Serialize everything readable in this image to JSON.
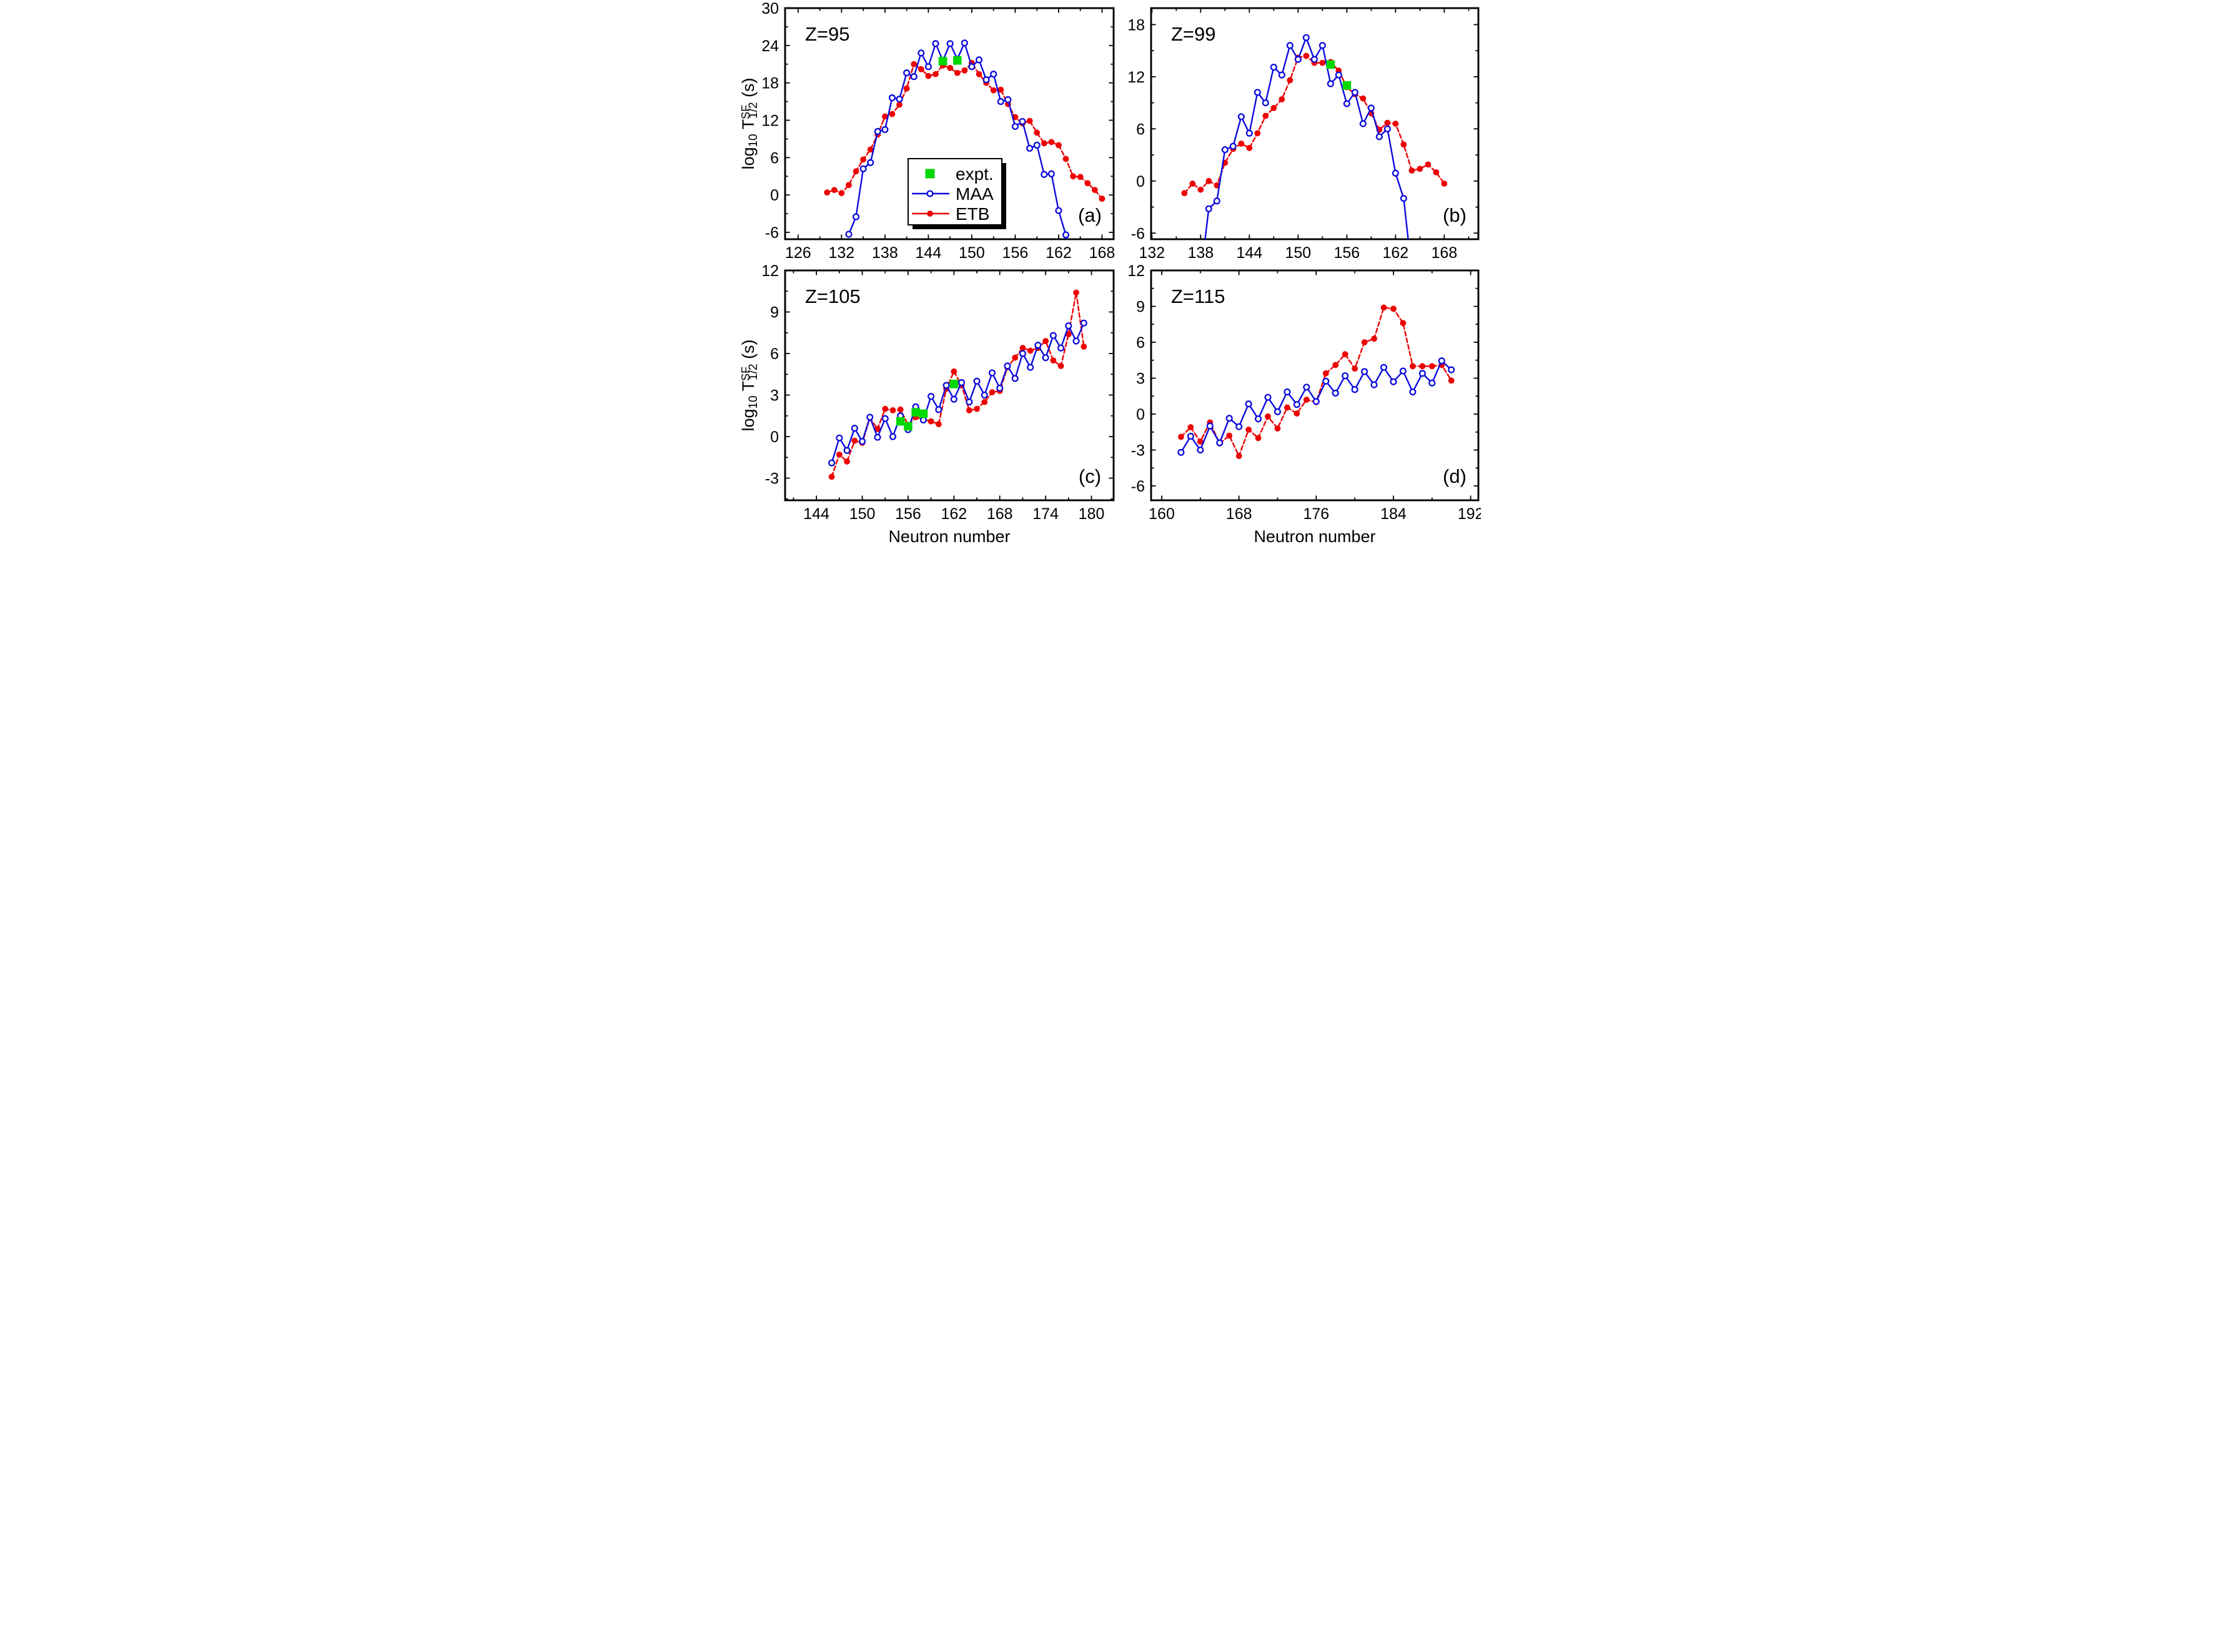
{
  "figure": {
    "xlabel": "Neutron number",
    "ylabel_parts": {
      "prefix": "log",
      "sub1": "10",
      "body": " T",
      "sup": "SF",
      "sub2": "1/2",
      "suffix": " (s)"
    },
    "background": "#ffffff"
  },
  "colors": {
    "maa": "#0b0bdf",
    "etb": "#ee0000",
    "expt": "#00d800",
    "axis": "#000000",
    "legend_shadow": "#000000"
  },
  "legend": {
    "items": [
      {
        "key": "expt",
        "label": "expt.",
        "marker": "square"
      },
      {
        "key": "maa",
        "label": "MAA",
        "marker": "open-circle-line"
      },
      {
        "key": "etb",
        "label": "ETB",
        "marker": "filled-circle-line"
      }
    ]
  },
  "chart_data": [
    {
      "id": "a",
      "type": "line",
      "title": "Z=95",
      "corner_label": "(a)",
      "xlim": [
        124.2,
        169.6
      ],
      "ylim": [
        -7.1,
        30.0
      ],
      "xticks": [
        126,
        132,
        138,
        144,
        150,
        156,
        162,
        168
      ],
      "xminor_step": 3,
      "yticks": [
        30,
        24,
        18,
        12,
        6,
        0,
        -6
      ],
      "yminor_step": 3,
      "series": [
        {
          "name": "ETB",
          "x": [
            130,
            131,
            132,
            133,
            134,
            135,
            136,
            137,
            138,
            139,
            140,
            141,
            142,
            143,
            144,
            145,
            146,
            147,
            148,
            149,
            150,
            151,
            152,
            153,
            154,
            155,
            156,
            157,
            158,
            159,
            160,
            161,
            162,
            163,
            164,
            165,
            166,
            167,
            168
          ],
          "y": [
            0.4,
            0.8,
            0.3,
            1.6,
            3.8,
            5.7,
            7.3,
            9.7,
            12.6,
            13.0,
            14.5,
            17.1,
            21.0,
            20.2,
            19.1,
            19.4,
            20.8,
            20.4,
            19.6,
            20.0,
            21.2,
            19.4,
            18.0,
            16.8,
            16.9,
            14.6,
            12.5,
            11.5,
            11.9,
            10.0,
            8.3,
            8.5,
            8.0,
            5.8,
            3.0,
            2.9,
            1.9,
            0.8,
            -0.6
          ]
        },
        {
          "name": "MAA",
          "x": [
            133,
            134,
            135,
            136,
            137,
            138,
            139,
            140,
            141,
            142,
            143,
            144,
            145,
            146,
            147,
            148,
            149,
            150,
            151,
            152,
            153,
            154,
            155,
            156,
            157,
            158,
            159,
            160,
            161,
            162,
            163,
            164
          ],
          "y": [
            -6.3,
            -3.5,
            4.2,
            5.2,
            10.2,
            10.5,
            15.6,
            15.4,
            19.6,
            19.0,
            22.8,
            20.6,
            24.3,
            21.6,
            24.3,
            21.8,
            24.4,
            20.6,
            21.7,
            18.5,
            19.4,
            15.0,
            15.3,
            11.0,
            11.8,
            7.5,
            8.0,
            3.3,
            3.4,
            -2.5,
            -6.4,
            -12.0
          ]
        },
        {
          "name": "expt",
          "x": [
            146,
            148
          ],
          "y": [
            21.5,
            21.6
          ]
        }
      ]
    },
    {
      "id": "b",
      "type": "line",
      "title": "Z=99",
      "corner_label": "(b)",
      "xlim": [
        131.9,
        172.2
      ],
      "ylim": [
        -6.7,
        19.9
      ],
      "xticks": [
        132,
        138,
        144,
        150,
        156,
        162,
        168
      ],
      "xminor_step": 3,
      "yticks": [
        18,
        12,
        6,
        0,
        -6
      ],
      "yminor_step": 3,
      "series": [
        {
          "name": "ETB",
          "x": [
            136,
            137,
            138,
            139,
            140,
            141,
            142,
            143,
            144,
            145,
            146,
            147,
            148,
            149,
            150,
            151,
            152,
            153,
            154,
            155,
            156,
            157,
            158,
            159,
            160,
            161,
            162,
            163,
            164,
            165,
            166,
            167,
            168
          ],
          "y": [
            -1.4,
            -0.3,
            -1.0,
            0.0,
            -0.5,
            2.1,
            3.7,
            4.3,
            3.8,
            5.5,
            7.5,
            8.4,
            9.4,
            11.6,
            14.2,
            14.4,
            13.6,
            13.6,
            13.7,
            12.7,
            10.8,
            10.0,
            9.5,
            7.8,
            5.9,
            6.7,
            6.6,
            4.2,
            1.2,
            1.4,
            1.9,
            1.0,
            -0.3
          ]
        },
        {
          "name": "MAA",
          "x": [
            138,
            139,
            140,
            141,
            142,
            143,
            144,
            145,
            146,
            147,
            148,
            149,
            150,
            151,
            152,
            153,
            154,
            155,
            156,
            157,
            158,
            159,
            160,
            161,
            162,
            163,
            164
          ],
          "y": [
            -11.0,
            -3.2,
            -2.3,
            3.6,
            4.0,
            7.4,
            5.5,
            10.2,
            9.0,
            13.1,
            12.2,
            15.6,
            14.0,
            16.5,
            14.0,
            15.6,
            11.2,
            12.2,
            8.9,
            10.2,
            6.6,
            8.4,
            5.1,
            6.0,
            0.9,
            -2.0,
            -10.5
          ]
        },
        {
          "name": "expt",
          "x": [
            154,
            156
          ],
          "y": [
            13.4,
            11.0
          ]
        }
      ]
    },
    {
      "id": "c",
      "type": "line",
      "title": "Z=105",
      "corner_label": "(c)",
      "xlim": [
        139.9,
        182.9
      ],
      "ylim": [
        -4.6,
        12.0
      ],
      "xticks": [
        144,
        150,
        156,
        162,
        168,
        174,
        180
      ],
      "xminor_step": 3,
      "yticks": [
        12,
        9,
        6,
        3,
        0,
        -3
      ],
      "yminor_step": 1.5,
      "series": [
        {
          "name": "ETB",
          "x": [
            146,
            147,
            148,
            149,
            150,
            151,
            152,
            153,
            154,
            155,
            156,
            157,
            158,
            159,
            160,
            161,
            162,
            163,
            164,
            165,
            166,
            167,
            168,
            169,
            170,
            171,
            172,
            173,
            174,
            175,
            176,
            177,
            178,
            179
          ],
          "y": [
            -2.9,
            -1.3,
            -1.8,
            -0.3,
            -0.45,
            1.35,
            0.55,
            2.0,
            1.9,
            1.95,
            0.85,
            1.4,
            1.25,
            1.1,
            0.9,
            3.45,
            4.7,
            3.7,
            1.9,
            2.0,
            2.5,
            3.2,
            3.3,
            5.0,
            5.7,
            6.4,
            6.2,
            6.4,
            6.9,
            5.5,
            5.1,
            7.4,
            10.4,
            6.5
          ]
        },
        {
          "name": "MAA",
          "x": [
            146,
            147,
            148,
            149,
            150,
            151,
            152,
            153,
            154,
            155,
            156,
            157,
            158,
            159,
            160,
            161,
            162,
            163,
            164,
            165,
            166,
            167,
            168,
            169,
            170,
            171,
            172,
            173,
            174,
            175,
            176,
            177,
            178,
            179
          ],
          "y": [
            -1.9,
            -0.1,
            -1.0,
            0.6,
            -0.35,
            1.4,
            -0.05,
            1.3,
            0.0,
            1.5,
            0.5,
            2.15,
            1.2,
            2.9,
            1.95,
            3.7,
            2.7,
            3.9,
            2.5,
            4.0,
            3.0,
            4.6,
            3.5,
            5.1,
            4.2,
            6.0,
            5.0,
            6.6,
            5.7,
            7.3,
            6.4,
            8.0,
            6.9,
            8.2
          ]
        },
        {
          "name": "expt",
          "x": [
            155,
            156,
            157,
            158,
            162
          ],
          "y": [
            1.1,
            0.75,
            1.75,
            1.65,
            3.8
          ]
        }
      ]
    },
    {
      "id": "d",
      "type": "line",
      "title": "Z=115",
      "corner_label": "(d)",
      "xlim": [
        158.9,
        192.8
      ],
      "ylim": [
        -7.2,
        12.0
      ],
      "xticks": [
        160,
        168,
        176,
        184,
        192
      ],
      "xminor_step": 4,
      "yticks": [
        12,
        9,
        6,
        3,
        0,
        -3,
        -6
      ],
      "yminor_step": 1.5,
      "series": [
        {
          "name": "ETB",
          "x": [
            162,
            163,
            164,
            165,
            166,
            167,
            168,
            169,
            170,
            171,
            172,
            173,
            174,
            175,
            176,
            177,
            178,
            179,
            180,
            181,
            182,
            183,
            184,
            185,
            186,
            187,
            188,
            189,
            190
          ],
          "y": [
            -1.9,
            -1.1,
            -2.3,
            -0.7,
            -2.45,
            -1.8,
            -3.5,
            -1.3,
            -2.0,
            -0.2,
            -1.2,
            0.55,
            0.05,
            1.2,
            1.0,
            3.4,
            4.1,
            5.0,
            3.8,
            6.0,
            6.3,
            8.9,
            8.8,
            7.6,
            4.0,
            4.0,
            4.0,
            4.1,
            2.8
          ]
        },
        {
          "name": "MAA",
          "x": [
            162,
            163,
            164,
            165,
            166,
            167,
            168,
            169,
            170,
            171,
            172,
            173,
            174,
            175,
            176,
            177,
            178,
            179,
            180,
            181,
            182,
            183,
            184,
            185,
            186,
            187,
            188,
            189,
            190
          ],
          "y": [
            -3.2,
            -1.85,
            -3.0,
            -1.0,
            -2.4,
            -0.35,
            -1.05,
            0.85,
            -0.4,
            1.4,
            0.2,
            1.85,
            0.8,
            2.25,
            1.05,
            2.75,
            1.75,
            3.2,
            2.05,
            3.55,
            2.45,
            3.9,
            2.7,
            3.6,
            1.85,
            3.4,
            2.6,
            4.45,
            3.7
          ]
        },
        {
          "name": "expt",
          "x": [],
          "y": []
        }
      ]
    }
  ]
}
